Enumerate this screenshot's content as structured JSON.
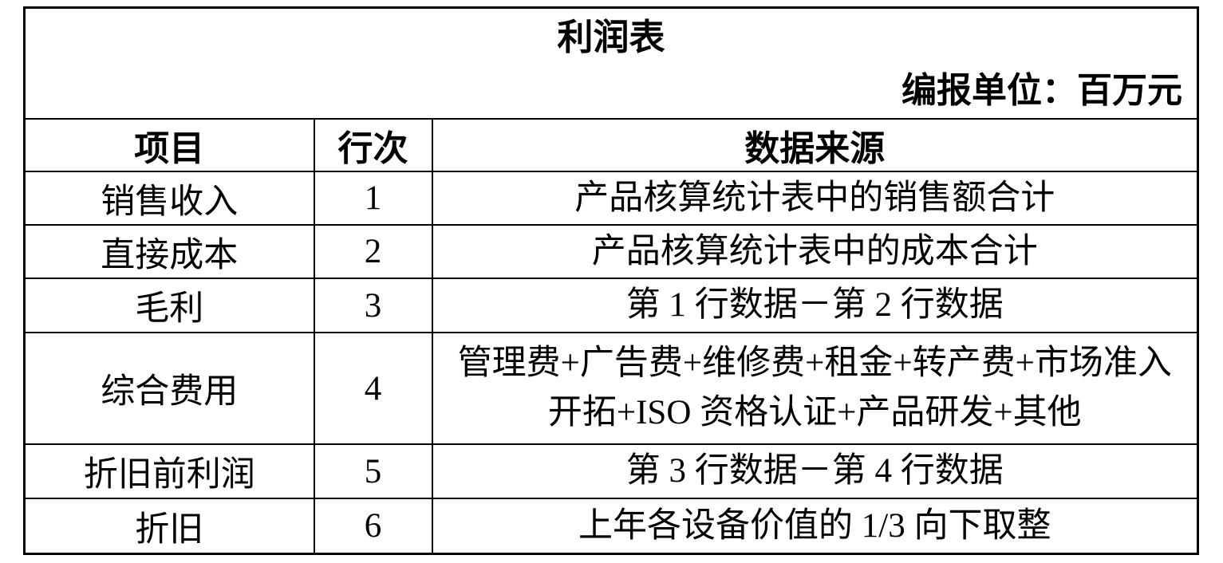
{
  "table": {
    "title": "利润表",
    "unit_label": "编报单位：百万元",
    "columns": [
      "项目",
      "行次",
      "数据来源"
    ],
    "rows": [
      {
        "item": "销售收入",
        "line_no": "1",
        "source_lines": [
          "产品核算统计表中的销售额合计"
        ]
      },
      {
        "item": "直接成本",
        "line_no": "2",
        "source_lines": [
          "产品核算统计表中的成本合计"
        ]
      },
      {
        "item": "毛利",
        "line_no": "3",
        "source_lines": [
          "第 1 行数据－第 2 行数据"
        ]
      },
      {
        "item": "综合费用",
        "line_no": "4",
        "source_lines": [
          "管理费+广告费+维修费+租金+转产费+市场准入",
          "开拓+ISO 资格认证+产品研发+其他"
        ]
      },
      {
        "item": "折旧前利润",
        "line_no": "5",
        "source_lines": [
          "第 3 行数据－第 4 行数据"
        ]
      },
      {
        "item": "折旧",
        "line_no": "6",
        "source_lines": [
          "上年各设备价值的 1/3 向下取整"
        ]
      }
    ],
    "colors": {
      "border": "#000000",
      "text": "#000000",
      "page_background": "#ffffff"
    }
  }
}
